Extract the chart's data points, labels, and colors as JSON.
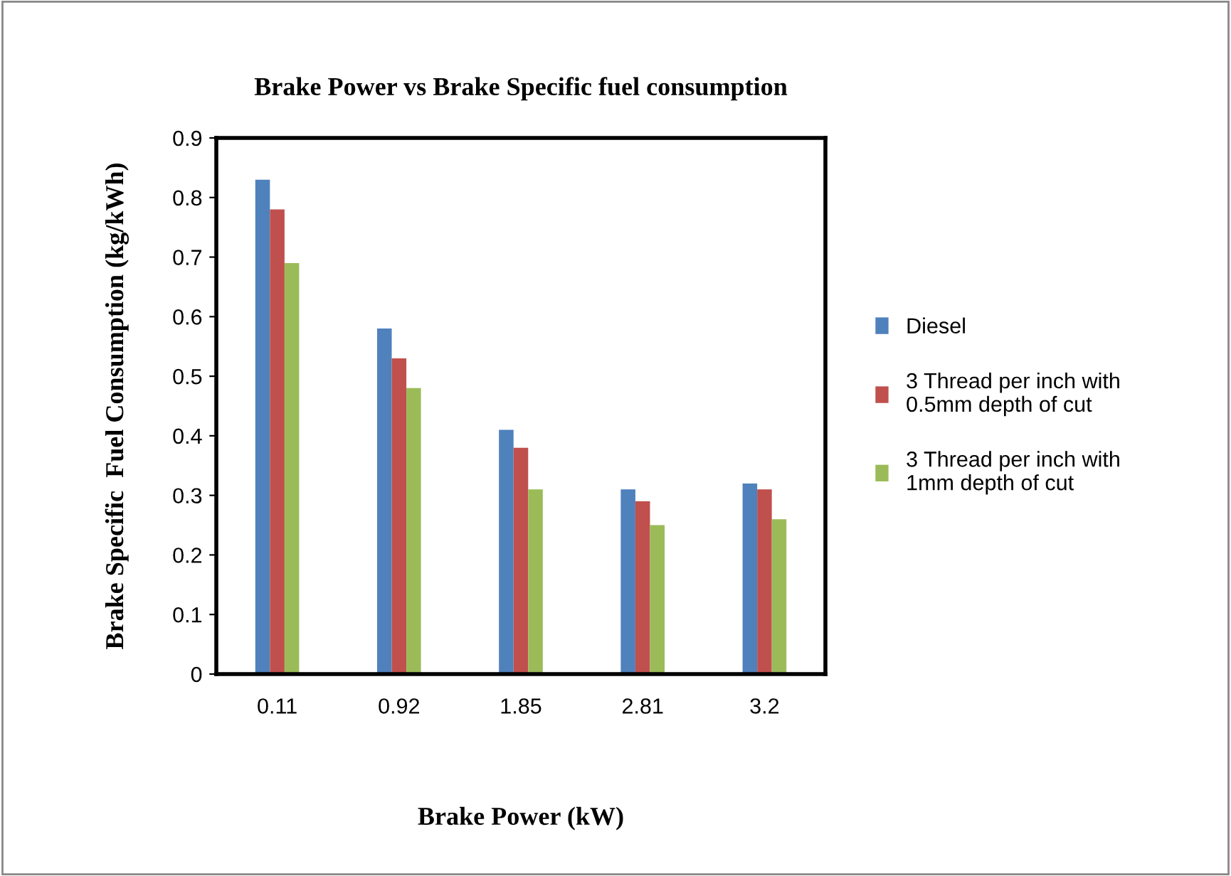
{
  "chart_data": {
    "type": "bar",
    "title": "Brake Power vs Brake Specific fuel consumption",
    "xlabel": "Brake Power (kW)",
    "ylabel": "Brake Specific  Fuel Consumption (kg/kWh)",
    "categories": [
      "0.11",
      "0.92",
      "1.85",
      "2.81",
      "3.2"
    ],
    "series": [
      {
        "name": "Diesel",
        "color": "#4f81bd",
        "values": [
          0.83,
          0.58,
          0.41,
          0.31,
          0.32
        ]
      },
      {
        "name": "3 Thread per inch with\n0.5mm depth of cut",
        "color": "#c0504d",
        "values": [
          0.78,
          0.53,
          0.38,
          0.29,
          0.31
        ]
      },
      {
        "name": "3 Thread per inch with\n1mm depth of cut",
        "color": "#9bbb59",
        "values": [
          0.69,
          0.48,
          0.31,
          0.25,
          0.26
        ]
      }
    ],
    "ylim": [
      0,
      0.9
    ],
    "yticks": [
      "0",
      0.1,
      0.2,
      0.3,
      0.4,
      0.5,
      0.6,
      0.7,
      0.8,
      0.9
    ],
    "grid": false,
    "legend": "right"
  }
}
